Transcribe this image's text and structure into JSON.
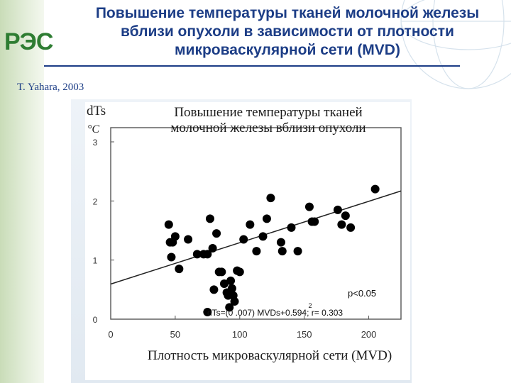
{
  "header": {
    "logo_text": "РЭС",
    "title_lines": [
      "Повышение температуры тканей молочной железы",
      "вблизи опухоли в зависимости от плотности",
      "микроваскулярной сети  (MVD)"
    ],
    "citation": "T. Yahara, 2003"
  },
  "colors": {
    "title": "#1c3d86",
    "logo_green": "#2e7d32",
    "logo_blue": "#1565c0",
    "markers": "#000000"
  },
  "chart_data": {
    "type": "scatter",
    "title_lines": [
      "Повышение температуры тканей",
      "молочной железы вблизи опухоли"
    ],
    "ylabel": "dTs",
    "yunit": "°C",
    "xlabel": "Плотность микроваскулярной сети (MVD)",
    "xlim": [
      0,
      225
    ],
    "ylim": [
      0,
      3
    ],
    "xticks": [
      "0",
      "50",
      "100",
      "150",
      "200"
    ],
    "yticks": [
      "0",
      "1",
      "2",
      "3"
    ],
    "grid": false,
    "points": [
      [
        45,
        1.6
      ],
      [
        46,
        1.3
      ],
      [
        48,
        1.3
      ],
      [
        47,
        1.05
      ],
      [
        50,
        1.4
      ],
      [
        53,
        0.85
      ],
      [
        60,
        1.35
      ],
      [
        67,
        1.1
      ],
      [
        72,
        1.1
      ],
      [
        75,
        1.1
      ],
      [
        77,
        1.7
      ],
      [
        79,
        1.2
      ],
      [
        82,
        1.45
      ],
      [
        84,
        0.8
      ],
      [
        86,
        0.8
      ],
      [
        88,
        0.6
      ],
      [
        90,
        0.45
      ],
      [
        91,
        0.4
      ],
      [
        93,
        0.65
      ],
      [
        94,
        0.52
      ],
      [
        95,
        0.4
      ],
      [
        96,
        0.3
      ],
      [
        98,
        0.82
      ],
      [
        100,
        0.8
      ],
      [
        75,
        0.12
      ],
      [
        80,
        0.5
      ],
      [
        92,
        0.2
      ],
      [
        103,
        1.35
      ],
      [
        108,
        1.6
      ],
      [
        113,
        1.15
      ],
      [
        118,
        1.4
      ],
      [
        121,
        1.7
      ],
      [
        124,
        2.05
      ],
      [
        132,
        1.3
      ],
      [
        133,
        1.15
      ],
      [
        140,
        1.55
      ],
      [
        145,
        1.15
      ],
      [
        154,
        1.9
      ],
      [
        156,
        1.65
      ],
      [
        158,
        1.65
      ],
      [
        176,
        1.85
      ],
      [
        179,
        1.6
      ],
      [
        182,
        1.75
      ],
      [
        186,
        1.55
      ],
      [
        205,
        2.2
      ]
    ],
    "regression": {
      "label": "dTs=(0 .007) MVDs+0.594;  r= 0.303",
      "p_value": "p<0.05",
      "n_mark": "2",
      "slope": 0.007,
      "intercept": 0.594
    }
  }
}
